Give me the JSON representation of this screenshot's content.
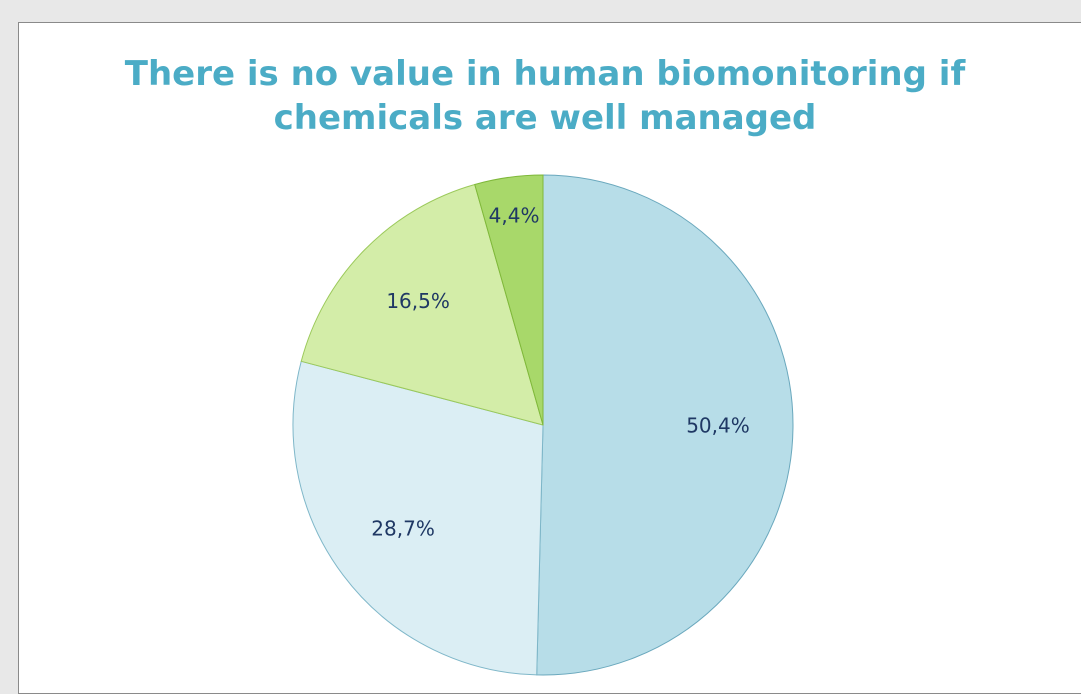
{
  "chart_data": {
    "type": "pie",
    "title": "There is no value in human biomonitoring if chemicals are well managed",
    "values": [
      50.4,
      28.7,
      16.5,
      4.4
    ],
    "value_labels": [
      "50,4%",
      "28,7%",
      "16,5%",
      "4,4%"
    ],
    "colors": [
      "#b7dde8",
      "#dbeef4",
      "#d3eda8",
      "#a8d86a"
    ]
  }
}
